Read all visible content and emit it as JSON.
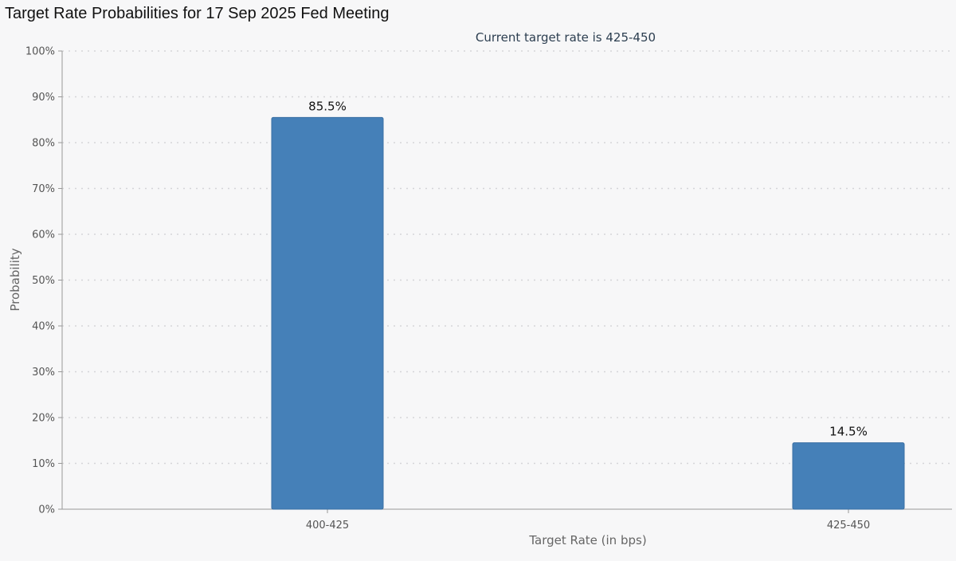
{
  "header": {
    "title": "Target Rate Probabilities for 17 Sep 2025 Fed Meeting"
  },
  "chart_data": {
    "type": "bar",
    "title": "",
    "subtitle": "Current target rate is 425-450",
    "xlabel": "Target Rate (in bps)",
    "ylabel": "Probability",
    "categories": [
      "400-425",
      "425-450"
    ],
    "values": [
      85.5,
      14.5
    ],
    "data_labels": [
      "85.5%",
      "14.5%"
    ],
    "ylim": [
      0,
      100
    ],
    "yticks": [
      0,
      10,
      20,
      30,
      40,
      50,
      60,
      70,
      80,
      90,
      100
    ],
    "ytick_labels": [
      "0%",
      "10%",
      "20%",
      "30%",
      "40%",
      "50%",
      "60%",
      "70%",
      "80%",
      "90%",
      "100%"
    ],
    "grid": true,
    "legend": "none",
    "colors": {
      "bar": "#4580b8",
      "bar_edge": "#3a6fa3",
      "grid": "#d5d5d8",
      "axis": "#999999",
      "tick_label": "#555555",
      "axis_label": "#666666",
      "subtitle": "#2c3e50",
      "data_label": "#111111"
    }
  }
}
